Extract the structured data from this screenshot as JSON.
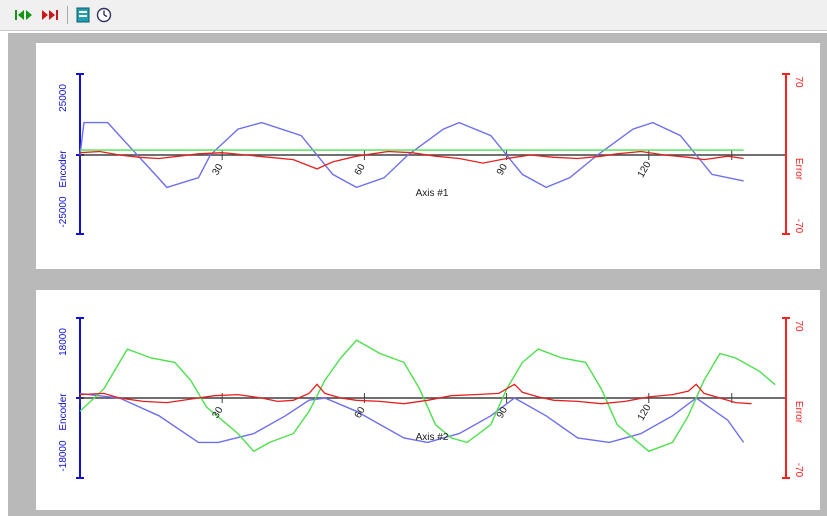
{
  "toolbar": {
    "buttons": [
      {
        "name": "green-play-arrows-icon"
      },
      {
        "name": "red-stop-arrows-icon"
      },
      {
        "name": "export-icon"
      },
      {
        "name": "clock-icon"
      }
    ]
  },
  "colors": {
    "encoder": "#6e6ef0",
    "velocity": "#4de04d",
    "error": "#e52020",
    "left_axis": "#1010d8",
    "right_axis": "#ff2020"
  },
  "chart_data": [
    {
      "type": "line",
      "title": "Axis #1",
      "ylabel_left": "Encoder",
      "ylabel_right": "Error",
      "ylim_left": [
        -25000,
        25000
      ],
      "ylim_right": [
        -70,
        70
      ],
      "yticks_left": [
        "25000",
        "-25000"
      ],
      "yticks_right": [
        "70",
        "-70"
      ],
      "xticks": [
        "30",
        "60",
        "90",
        "120"
      ],
      "series": [
        {
          "color": "#6e6ef0",
          "points": [
            [
              0,
              0
            ],
            [
              1,
              10000
            ],
            [
              7,
              10000
            ],
            [
              10,
              6000
            ],
            [
              19,
              -6000
            ],
            [
              22,
              -10000
            ],
            [
              30,
              -7000
            ],
            [
              33,
              0
            ],
            [
              40,
              8000
            ],
            [
              46,
              10000
            ],
            [
              56,
              6000
            ],
            [
              64,
              -6000
            ],
            [
              70,
              -10000
            ],
            [
              77,
              -7000
            ],
            [
              83,
              0
            ],
            [
              92,
              8000
            ],
            [
              96,
              10000
            ],
            [
              104,
              6000
            ],
            [
              112,
              -6000
            ],
            [
              118,
              -10000
            ],
            [
              124,
              -7000
            ],
            [
              131,
              0
            ],
            [
              140,
              8000
            ],
            [
              145,
              10000
            ],
            [
              152,
              6000
            ],
            [
              160,
              -6000
            ],
            [
              168,
              -8000
            ]
          ]
        },
        {
          "color": "#4de04d",
          "points": [
            [
              0,
              1500
            ],
            [
              168,
              1500
            ]
          ]
        },
        {
          "color": "#e52020",
          "points": [
            [
              0,
              2
            ],
            [
              5,
              3
            ],
            [
              10,
              0
            ],
            [
              15,
              -2
            ],
            [
              20,
              -3
            ],
            [
              25,
              -1
            ],
            [
              30,
              1
            ],
            [
              36,
              2
            ],
            [
              42,
              0
            ],
            [
              48,
              -2
            ],
            [
              54,
              -4
            ],
            [
              60,
              -12
            ],
            [
              64,
              -6
            ],
            [
              70,
              -1
            ],
            [
              78,
              3
            ],
            [
              84,
              2
            ],
            [
              90,
              -1
            ],
            [
              96,
              -3
            ],
            [
              102,
              -7
            ],
            [
              108,
              -3
            ],
            [
              114,
              0
            ],
            [
              120,
              -2
            ],
            [
              126,
              -3
            ],
            [
              132,
              -1
            ],
            [
              136,
              1
            ],
            [
              142,
              3
            ],
            [
              148,
              0
            ],
            [
              154,
              -2
            ],
            [
              158,
              -4
            ],
            [
              164,
              -1
            ],
            [
              168,
              -3
            ]
          ]
        }
      ]
    },
    {
      "type": "line",
      "title": "Axis #2",
      "ylabel_left": "Encoder",
      "ylabel_right": "Error",
      "ylim_left": [
        -18000,
        18000
      ],
      "ylim_right": [
        -70,
        70
      ],
      "yticks_left": [
        "18000",
        "-18000"
      ],
      "yticks_right": [
        "70",
        "-70"
      ],
      "xticks": [
        "30",
        "60",
        "90",
        "120"
      ],
      "series": [
        {
          "color": "#6e6ef0",
          "points": [
            [
              0,
              1000
            ],
            [
              10,
              0
            ],
            [
              20,
              -4000
            ],
            [
              30,
              -10000
            ],
            [
              35,
              -10000
            ],
            [
              44,
              -8000
            ],
            [
              52,
              -4000
            ],
            [
              58,
              -500
            ],
            [
              62,
              0
            ],
            [
              70,
              -3000
            ],
            [
              82,
              -9000
            ],
            [
              88,
              -10000
            ],
            [
              96,
              -8000
            ],
            [
              104,
              -4000
            ],
            [
              110,
              0
            ],
            [
              118,
              -4000
            ],
            [
              126,
              -9000
            ],
            [
              134,
              -10000
            ],
            [
              142,
              -8000
            ],
            [
              150,
              -4000
            ],
            [
              156,
              0
            ],
            [
              164,
              -5000
            ],
            [
              168,
              -10000
            ]
          ]
        },
        {
          "color": "#4de04d",
          "points": [
            [
              0,
              -3000
            ],
            [
              6,
              2000
            ],
            [
              10,
              8000
            ],
            [
              12,
              11000
            ],
            [
              18,
              9000
            ],
            [
              24,
              8000
            ],
            [
              28,
              4000
            ],
            [
              32,
              -2000
            ],
            [
              40,
              -8000
            ],
            [
              44,
              -12000
            ],
            [
              48,
              -10000
            ],
            [
              54,
              -8000
            ],
            [
              58,
              -3000
            ],
            [
              62,
              4000
            ],
            [
              66,
              9000
            ],
            [
              70,
              13000
            ],
            [
              76,
              10000
            ],
            [
              82,
              8000
            ],
            [
              86,
              2000
            ],
            [
              90,
              -6000
            ],
            [
              94,
              -9000
            ],
            [
              98,
              -10000
            ],
            [
              104,
              -6000
            ],
            [
              108,
              2000
            ],
            [
              112,
              8000
            ],
            [
              116,
              11000
            ],
            [
              122,
              9000
            ],
            [
              128,
              8000
            ],
            [
              132,
              2000
            ],
            [
              136,
              -6000
            ],
            [
              140,
              -9000
            ],
            [
              144,
              -12000
            ],
            [
              150,
              -10000
            ],
            [
              154,
              -4000
            ],
            [
              158,
              4000
            ],
            [
              162,
              10000
            ],
            [
              166,
              9000
            ],
            [
              172,
              6000
            ],
            [
              176,
              3000
            ]
          ]
        },
        {
          "color": "#e52020",
          "points": [
            [
              0,
              3
            ],
            [
              6,
              4
            ],
            [
              10,
              0
            ],
            [
              16,
              -3
            ],
            [
              22,
              -4
            ],
            [
              28,
              -1
            ],
            [
              34,
              2
            ],
            [
              40,
              3
            ],
            [
              46,
              0
            ],
            [
              50,
              -3
            ],
            [
              54,
              -2
            ],
            [
              58,
              4
            ],
            [
              60,
              12
            ],
            [
              62,
              4
            ],
            [
              66,
              0
            ],
            [
              70,
              -2
            ],
            [
              76,
              -3
            ],
            [
              82,
              -5
            ],
            [
              88,
              -2
            ],
            [
              94,
              2
            ],
            [
              100,
              3
            ],
            [
              106,
              4
            ],
            [
              110,
              12
            ],
            [
              112,
              5
            ],
            [
              116,
              1
            ],
            [
              120,
              -2
            ],
            [
              126,
              -3
            ],
            [
              132,
              -5
            ],
            [
              138,
              -3
            ],
            [
              144,
              1
            ],
            [
              150,
              3
            ],
            [
              154,
              6
            ],
            [
              156,
              12
            ],
            [
              158,
              4
            ],
            [
              162,
              0
            ],
            [
              166,
              -4
            ],
            [
              170,
              -5
            ]
          ]
        }
      ]
    }
  ]
}
